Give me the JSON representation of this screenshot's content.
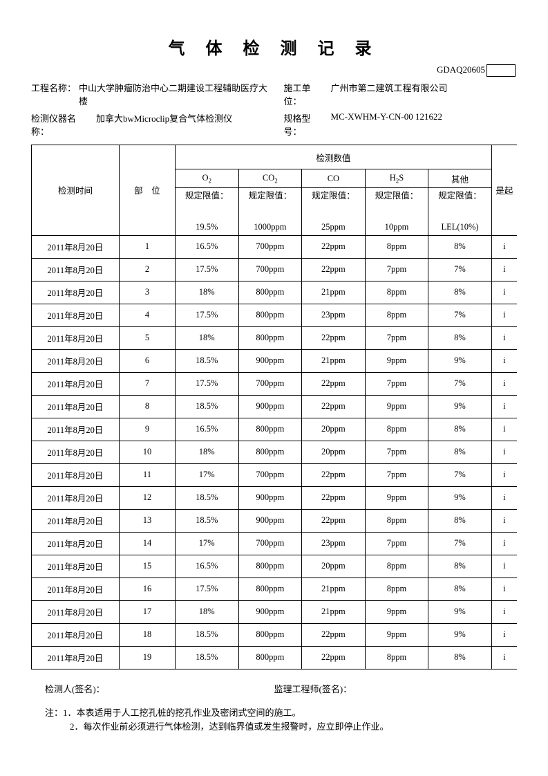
{
  "title": "气 体 检 测 记 录",
  "code": "GDAQ20605",
  "info": {
    "project_label": "工程名称：",
    "project_value": "中山大学肿瘤防治中心二期建设工程辅助医疗大楼",
    "unit_label": "施工单位：",
    "unit_value": "广州市第二建筑工程有限公司",
    "instrument_label": "检测仪器名称：",
    "instrument_value": "加拿大bwMicroclip复合气体检测仪",
    "model_label": "规格型号：",
    "model_value": "MC-XWHM-Y-CN-00 121622"
  },
  "table": {
    "header_time": "检测时间",
    "header_pos": "部　位",
    "header_valgroup": "检测数值",
    "header_last": "是起",
    "gases": [
      {
        "name_html": "O<sub>2</sub>",
        "limit_line1": "规定限值：",
        "limit_line2": "19.5%"
      },
      {
        "name_html": "CO<sub>2</sub>",
        "limit_line1": "规定限值：",
        "limit_line2": "1000ppm"
      },
      {
        "name_html": "CO",
        "limit_line1": "规定限值：",
        "limit_line2": "25ppm"
      },
      {
        "name_html": "H<sub>2</sub>S",
        "limit_line1": "规定限值：",
        "limit_line2": "10ppm"
      },
      {
        "name_html": "其他",
        "limit_line1": "规定限值：",
        "limit_line2": "LEL(10%)"
      }
    ],
    "rows": [
      {
        "time": "2011年8月20日",
        "pos": "1",
        "v": [
          "16.5%",
          "700ppm",
          "22ppm",
          "8ppm",
          "8%"
        ],
        "last": "i"
      },
      {
        "time": "2011年8月20日",
        "pos": "2",
        "v": [
          "17.5%",
          "700ppm",
          "22ppm",
          "7ppm",
          "7%"
        ],
        "last": "i"
      },
      {
        "time": "2011年8月20日",
        "pos": "3",
        "v": [
          "18%",
          "800ppm",
          "21ppm",
          "8ppm",
          "8%"
        ],
        "last": "i"
      },
      {
        "time": "2011年8月20日",
        "pos": "4",
        "v": [
          "17.5%",
          "800ppm",
          "23ppm",
          "8ppm",
          "7%"
        ],
        "last": "i"
      },
      {
        "time": "2011年8月20日",
        "pos": "5",
        "v": [
          "18%",
          "800ppm",
          "22ppm",
          "7ppm",
          "8%"
        ],
        "last": "i"
      },
      {
        "time": "2011年8月20日",
        "pos": "6",
        "v": [
          "18.5%",
          "900ppm",
          "21ppm",
          "9ppm",
          "9%"
        ],
        "last": "i"
      },
      {
        "time": "2011年8月20日",
        "pos": "7",
        "v": [
          "17.5%",
          "700ppm",
          "22ppm",
          "7ppm",
          "7%"
        ],
        "last": "i"
      },
      {
        "time": "2011年8月20日",
        "pos": "8",
        "v": [
          "18.5%",
          "900ppm",
          "22ppm",
          "9ppm",
          "9%"
        ],
        "last": "i"
      },
      {
        "time": "2011年8月20日",
        "pos": "9",
        "v": [
          "16.5%",
          "800ppm",
          "20ppm",
          "8ppm",
          "8%"
        ],
        "last": "i"
      },
      {
        "time": "2011年8月20日",
        "pos": "10",
        "v": [
          "18%",
          "800ppm",
          "20ppm",
          "7ppm",
          "8%"
        ],
        "last": "i"
      },
      {
        "time": "2011年8月20日",
        "pos": "11",
        "v": [
          "17%",
          "700ppm",
          "22ppm",
          "7ppm",
          "7%"
        ],
        "last": "i"
      },
      {
        "time": "2011年8月20日",
        "pos": "12",
        "v": [
          "18.5%",
          "900ppm",
          "22ppm",
          "9ppm",
          "9%"
        ],
        "last": "i"
      },
      {
        "time": "2011年8月20日",
        "pos": "13",
        "v": [
          "18.5%",
          "900ppm",
          "22ppm",
          "8ppm",
          "8%"
        ],
        "last": "i"
      },
      {
        "time": "2011年8月20日",
        "pos": "14",
        "v": [
          "17%",
          "700ppm",
          "23ppm",
          "7ppm",
          "7%"
        ],
        "last": "i"
      },
      {
        "time": "2011年8月20日",
        "pos": "15",
        "v": [
          "16.5%",
          "800ppm",
          "20ppm",
          "8ppm",
          "8%"
        ],
        "last": "i"
      },
      {
        "time": "2011年8月20日",
        "pos": "16",
        "v": [
          "17.5%",
          "800ppm",
          "21ppm",
          "8ppm",
          "8%"
        ],
        "last": "i"
      },
      {
        "time": "2011年8月20日",
        "pos": "17",
        "v": [
          "18%",
          "900ppm",
          "21ppm",
          "9ppm",
          "9%"
        ],
        "last": "i"
      },
      {
        "time": "2011年8月20日",
        "pos": "18",
        "v": [
          "18.5%",
          "800ppm",
          "22ppm",
          "9ppm",
          "9%"
        ],
        "last": "i"
      },
      {
        "time": "2011年8月20日",
        "pos": "19",
        "v": [
          "18.5%",
          "800ppm",
          "22ppm",
          "8ppm",
          "8%"
        ],
        "last": "i"
      }
    ]
  },
  "signatures": {
    "left": "检测人(签名)：",
    "right": "监理工程师(签名)："
  },
  "notes": {
    "line1": "注：1．本表适用于人工挖孔桩的挖孔作业及密闭式空间的施工。",
    "line2": "2．每次作业前必须进行气体检测，达到临界值或发生报警时，应立即停止作业。"
  }
}
